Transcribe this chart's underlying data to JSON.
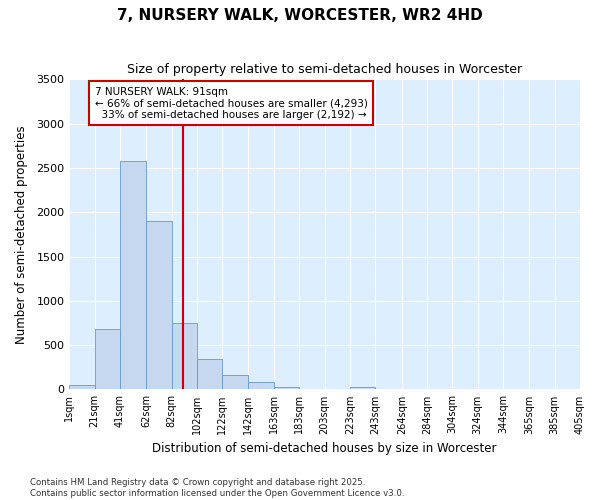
{
  "title": "7, NURSERY WALK, WORCESTER, WR2 4HD",
  "subtitle": "Size of property relative to semi-detached houses in Worcester",
  "xlabel": "Distribution of semi-detached houses by size in Worcester",
  "ylabel": "Number of semi-detached properties",
  "property_label": "7 NURSERY WALK: 91sqm",
  "pct_smaller": 66,
  "count_smaller": 4293,
  "pct_larger": 33,
  "count_larger": 2192,
  "bin_labels": [
    "1sqm",
    "21sqm",
    "41sqm",
    "62sqm",
    "82sqm",
    "102sqm",
    "122sqm",
    "142sqm",
    "163sqm",
    "183sqm",
    "203sqm",
    "223sqm",
    "243sqm",
    "264sqm",
    "284sqm",
    "304sqm",
    "324sqm",
    "344sqm",
    "365sqm",
    "385sqm",
    "405sqm"
  ],
  "bin_edges": [
    1,
    21,
    41,
    62,
    82,
    102,
    122,
    142,
    163,
    183,
    203,
    223,
    243,
    264,
    284,
    304,
    324,
    344,
    365,
    385,
    405
  ],
  "bar_values": [
    50,
    680,
    2580,
    1900,
    750,
    340,
    160,
    80,
    30,
    0,
    0,
    30,
    0,
    0,
    0,
    0,
    0,
    0,
    0,
    0
  ],
  "bar_color": "#c5d8f0",
  "bar_edge_color": "#6699cc",
  "vline_x": 91,
  "vline_color": "#cc0000",
  "ylim": [
    0,
    3500
  ],
  "yticks": [
    0,
    500,
    1000,
    1500,
    2000,
    2500,
    3000,
    3500
  ],
  "plot_bg_color": "#ddeeff",
  "fig_bg_color": "#ffffff",
  "grid_color": "#ffffff",
  "annotation_box_edgecolor": "#cc0000",
  "footer": "Contains HM Land Registry data © Crown copyright and database right 2025.\nContains public sector information licensed under the Open Government Licence v3.0."
}
